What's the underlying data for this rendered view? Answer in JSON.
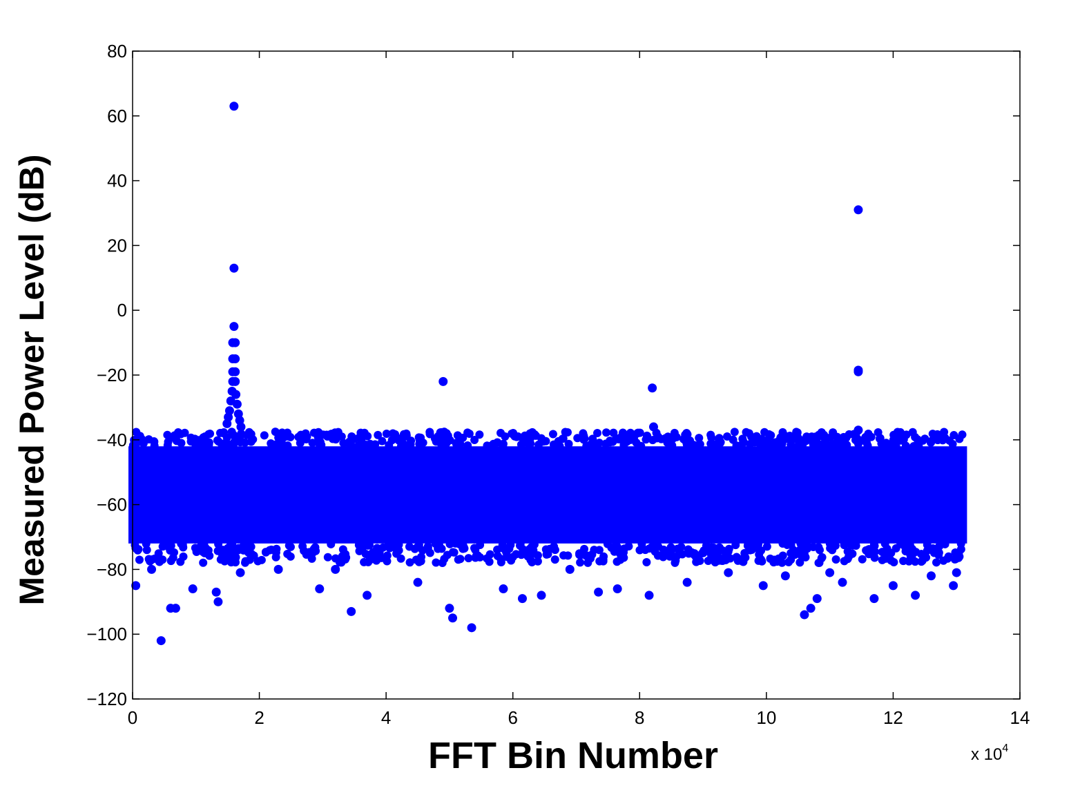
{
  "chart_data": {
    "type": "scatter",
    "title": "",
    "xlabel": "FFT Bin Number",
    "ylabel": "Measured Power Level (dB)",
    "x_multiplier_label": "x 10",
    "x_multiplier_exponent": "4",
    "x_scale": 10000,
    "xlim": [
      0,
      14
    ],
    "ylim": [
      -120,
      80
    ],
    "x_ticks": [
      0,
      2,
      4,
      6,
      8,
      10,
      12,
      14
    ],
    "y_ticks": [
      -120,
      -100,
      -80,
      -60,
      -40,
      -20,
      0,
      20,
      40,
      60,
      80
    ],
    "x_tick_labels": [
      "0",
      "2",
      "4",
      "6",
      "8",
      "10",
      "12",
      "14"
    ],
    "y_tick_labels": [
      "−120",
      "−100",
      "−80",
      "−60",
      "−40",
      "−20",
      "0",
      "20",
      "40",
      "60",
      "80"
    ],
    "grid": false,
    "marker_color": "#0000ff",
    "noise_floor": {
      "x_range": [
        0,
        13.1
      ],
      "y_range": [
        -72,
        -42
      ],
      "description_level": "dense band of points"
    },
    "series": [
      {
        "points": [
          {
            "x": 1.6,
            "y": 63
          },
          {
            "x": 1.6,
            "y": 13
          },
          {
            "x": 1.6,
            "y": -5
          },
          {
            "x": 1.58,
            "y": -10
          },
          {
            "x": 1.62,
            "y": -10
          },
          {
            "x": 1.58,
            "y": -15
          },
          {
            "x": 1.62,
            "y": -15
          },
          {
            "x": 1.58,
            "y": -19
          },
          {
            "x": 1.62,
            "y": -19
          },
          {
            "x": 1.58,
            "y": -22
          },
          {
            "x": 1.62,
            "y": -22
          },
          {
            "x": 1.57,
            "y": -25
          },
          {
            "x": 1.63,
            "y": -26
          },
          {
            "x": 1.55,
            "y": -28
          },
          {
            "x": 1.65,
            "y": -29
          },
          {
            "x": 1.53,
            "y": -31
          },
          {
            "x": 1.67,
            "y": -32
          },
          {
            "x": 1.51,
            "y": -33
          },
          {
            "x": 1.69,
            "y": -34
          },
          {
            "x": 1.49,
            "y": -35
          },
          {
            "x": 1.71,
            "y": -36
          },
          {
            "x": 4.9,
            "y": -22
          },
          {
            "x": 8.2,
            "y": -24
          },
          {
            "x": 8.22,
            "y": -36
          },
          {
            "x": 11.45,
            "y": 31
          },
          {
            "x": 11.45,
            "y": -19
          },
          {
            "x": 11.45,
            "y": -18.5
          },
          {
            "x": 11.45,
            "y": -37
          },
          {
            "x": 0.45,
            "y": -102
          },
          {
            "x": 0.6,
            "y": -92
          },
          {
            "x": 0.68,
            "y": -92
          },
          {
            "x": 0.05,
            "y": -85
          },
          {
            "x": 1.35,
            "y": -90
          },
          {
            "x": 1.32,
            "y": -87
          },
          {
            "x": 3.45,
            "y": -93
          },
          {
            "x": 3.7,
            "y": -88
          },
          {
            "x": 5.0,
            "y": -92
          },
          {
            "x": 5.05,
            "y": -95
          },
          {
            "x": 5.35,
            "y": -98
          },
          {
            "x": 6.15,
            "y": -89
          },
          {
            "x": 6.45,
            "y": -88
          },
          {
            "x": 7.35,
            "y": -87
          },
          {
            "x": 7.65,
            "y": -86
          },
          {
            "x": 8.15,
            "y": -88
          },
          {
            "x": 10.6,
            "y": -94
          },
          {
            "x": 10.7,
            "y": -92
          },
          {
            "x": 10.8,
            "y": -89
          },
          {
            "x": 11.7,
            "y": -89
          },
          {
            "x": 12.35,
            "y": -88
          },
          {
            "x": 12.95,
            "y": -85
          },
          {
            "x": 2.95,
            "y": -86
          },
          {
            "x": 0.95,
            "y": -86
          },
          {
            "x": 4.5,
            "y": -84
          },
          {
            "x": 5.85,
            "y": -86
          },
          {
            "x": 8.75,
            "y": -84
          },
          {
            "x": 9.95,
            "y": -85
          },
          {
            "x": 11.2,
            "y": -84
          },
          {
            "x": 12.0,
            "y": -85
          },
          {
            "x": 13.0,
            "y": -81
          },
          {
            "x": 0.3,
            "y": -80
          },
          {
            "x": 1.7,
            "y": -81
          },
          {
            "x": 2.3,
            "y": -80
          },
          {
            "x": 3.2,
            "y": -80
          },
          {
            "x": 6.9,
            "y": -80
          },
          {
            "x": 9.4,
            "y": -81
          },
          {
            "x": 10.3,
            "y": -82
          },
          {
            "x": 11.0,
            "y": -81
          },
          {
            "x": 12.6,
            "y": -82
          }
        ]
      }
    ]
  }
}
